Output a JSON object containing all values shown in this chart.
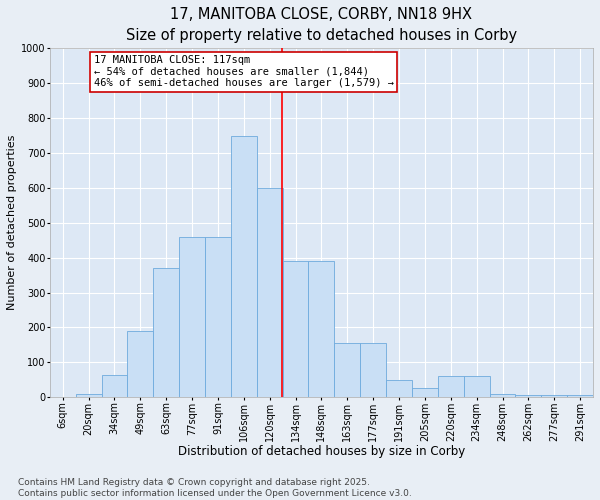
{
  "title": "17, MANITOBA CLOSE, CORBY, NN18 9HX",
  "subtitle": "Size of property relative to detached houses in Corby",
  "xlabel": "Distribution of detached houses by size in Corby",
  "ylabel": "Number of detached properties",
  "categories": [
    "6sqm",
    "20sqm",
    "34sqm",
    "49sqm",
    "63sqm",
    "77sqm",
    "91sqm",
    "106sqm",
    "120sqm",
    "134sqm",
    "148sqm",
    "163sqm",
    "177sqm",
    "191sqm",
    "205sqm",
    "220sqm",
    "234sqm",
    "248sqm",
    "262sqm",
    "277sqm",
    "291sqm"
  ],
  "values": [
    0,
    10,
    65,
    190,
    370,
    460,
    460,
    750,
    600,
    390,
    390,
    155,
    155,
    50,
    25,
    60,
    60,
    10,
    5,
    5,
    5
  ],
  "bar_color": "#c9dff5",
  "bar_edge_color": "#6eaadd",
  "background_color": "#dde8f5",
  "grid_color": "#ffffff",
  "annotation_line1": "17 MANITOBA CLOSE: 117sqm",
  "annotation_line2": "← 54% of detached houses are smaller (1,844)",
  "annotation_line3": "46% of semi-detached houses are larger (1,579) →",
  "ylim": [
    0,
    1000
  ],
  "yticks": [
    0,
    100,
    200,
    300,
    400,
    500,
    600,
    700,
    800,
    900,
    1000
  ],
  "red_line_x": 8.48,
  "footer_line1": "Contains HM Land Registry data © Crown copyright and database right 2025.",
  "footer_line2": "Contains public sector information licensed under the Open Government Licence v3.0.",
  "title_fontsize": 10.5,
  "xlabel_fontsize": 8.5,
  "ylabel_fontsize": 8.0,
  "tick_fontsize": 7.0,
  "footer_fontsize": 6.5,
  "annotation_fontsize": 7.5,
  "fig_bg": "#e8eef5"
}
